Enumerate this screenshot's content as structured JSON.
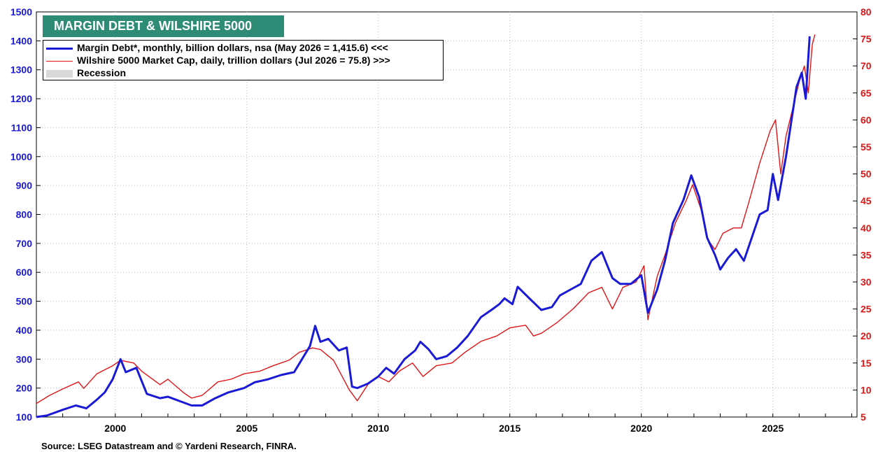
{
  "title": "MARGIN DEBT & WILSHIRE 5000",
  "legend": {
    "margin_debt": "Margin Debt*, monthly, billion dollars, nsa (May 2026 = 1,415.6) <<<",
    "wilshire": "Wilshire 5000 Market Cap, daily, trillion dollars  (Jul 2026 = 75.8) >>>",
    "recession": "Recession"
  },
  "source": "Source: LSEG Datastream and © Yardeni Research, FINRA.",
  "colors": {
    "margin_debt": "#1a1ad6",
    "wilshire": "#e01515",
    "recession": "#d9d9d9",
    "title_bg": "#2e8b76"
  },
  "chart_data": {
    "type": "line",
    "x_range": [
      1997.0,
      2028.2
    ],
    "x_ticks": [
      "2000",
      "2005",
      "2010",
      "2015",
      "2020",
      "2025"
    ],
    "x_tick_values": [
      2000,
      2005,
      2010,
      2015,
      2020,
      2025
    ],
    "y_left": {
      "range": [
        100,
        1500
      ],
      "ticks": [
        "100",
        "200",
        "300",
        "400",
        "500",
        "600",
        "700",
        "800",
        "900",
        "1000",
        "1100",
        "1200",
        "1300",
        "1400",
        "1500"
      ]
    },
    "y_right": {
      "range": [
        5,
        80
      ],
      "ticks": [
        "5",
        "10",
        "15",
        "20",
        "25",
        "30",
        "35",
        "40",
        "45",
        "50",
        "55",
        "60",
        "65",
        "70",
        "75",
        "80"
      ]
    },
    "series": [
      {
        "name": "Margin Debt*, monthly, billion dollars, nsa (May 2026 = 1,415.6) <<<",
        "axis": "left",
        "points": [
          [
            1997.0,
            100
          ],
          [
            1997.4,
            105
          ],
          [
            1998.0,
            125
          ],
          [
            1998.5,
            140
          ],
          [
            1998.9,
            130
          ],
          [
            1999.3,
            160
          ],
          [
            1999.6,
            185
          ],
          [
            1999.9,
            230
          ],
          [
            2000.2,
            300
          ],
          [
            2000.4,
            255
          ],
          [
            2000.8,
            270
          ],
          [
            2001.2,
            180
          ],
          [
            2001.7,
            165
          ],
          [
            2002.0,
            170
          ],
          [
            2002.3,
            160
          ],
          [
            2002.9,
            140
          ],
          [
            2003.3,
            140
          ],
          [
            2003.8,
            165
          ],
          [
            2004.3,
            185
          ],
          [
            2004.9,
            200
          ],
          [
            2005.3,
            220
          ],
          [
            2005.8,
            230
          ],
          [
            2006.3,
            245
          ],
          [
            2006.8,
            255
          ],
          [
            2007.1,
            300
          ],
          [
            2007.4,
            345
          ],
          [
            2007.6,
            415
          ],
          [
            2007.8,
            360
          ],
          [
            2008.1,
            370
          ],
          [
            2008.5,
            330
          ],
          [
            2008.8,
            340
          ],
          [
            2009.0,
            205
          ],
          [
            2009.2,
            200
          ],
          [
            2009.6,
            215
          ],
          [
            2010.0,
            240
          ],
          [
            2010.3,
            270
          ],
          [
            2010.6,
            250
          ],
          [
            2011.0,
            300
          ],
          [
            2011.4,
            330
          ],
          [
            2011.6,
            360
          ],
          [
            2011.9,
            335
          ],
          [
            2012.2,
            300
          ],
          [
            2012.6,
            310
          ],
          [
            2013.0,
            340
          ],
          [
            2013.4,
            380
          ],
          [
            2013.9,
            445
          ],
          [
            2014.3,
            470
          ],
          [
            2014.6,
            490
          ],
          [
            2014.8,
            510
          ],
          [
            2015.1,
            490
          ],
          [
            2015.3,
            550
          ],
          [
            2015.8,
            505
          ],
          [
            2016.2,
            470
          ],
          [
            2016.6,
            480
          ],
          [
            2016.9,
            520
          ],
          [
            2017.3,
            540
          ],
          [
            2017.7,
            560
          ],
          [
            2018.1,
            640
          ],
          [
            2018.5,
            670
          ],
          [
            2018.9,
            580
          ],
          [
            2019.2,
            560
          ],
          [
            2019.6,
            560
          ],
          [
            2020.0,
            590
          ],
          [
            2020.25,
            460
          ],
          [
            2020.6,
            540
          ],
          [
            2020.9,
            640
          ],
          [
            2021.2,
            770
          ],
          [
            2021.6,
            850
          ],
          [
            2021.9,
            935
          ],
          [
            2022.2,
            860
          ],
          [
            2022.5,
            720
          ],
          [
            2022.8,
            660
          ],
          [
            2023.0,
            610
          ],
          [
            2023.3,
            650
          ],
          [
            2023.6,
            680
          ],
          [
            2023.9,
            640
          ],
          [
            2024.2,
            720
          ],
          [
            2024.5,
            800
          ],
          [
            2024.8,
            815
          ],
          [
            2025.0,
            940
          ],
          [
            2025.2,
            850
          ],
          [
            2025.5,
            1000
          ],
          [
            2025.7,
            1120
          ],
          [
            2025.9,
            1240
          ],
          [
            2026.1,
            1290
          ],
          [
            2026.25,
            1200
          ],
          [
            2026.4,
            1415.6
          ]
        ]
      },
      {
        "name": "Wilshire 5000 Market Cap, daily, trillion dollars  (Jul 2026 = 75.8) >>>",
        "axis": "right",
        "points": [
          [
            1997.0,
            7.5
          ],
          [
            1997.5,
            9
          ],
          [
            1998.0,
            10.2
          ],
          [
            1998.6,
            11.5
          ],
          [
            1998.8,
            10.3
          ],
          [
            1999.3,
            13
          ],
          [
            1999.9,
            14.5
          ],
          [
            2000.2,
            15.5
          ],
          [
            2000.7,
            15
          ],
          [
            2001.0,
            13.5
          ],
          [
            2001.7,
            11
          ],
          [
            2002.0,
            12
          ],
          [
            2002.6,
            9.5
          ],
          [
            2002.9,
            8.5
          ],
          [
            2003.3,
            9
          ],
          [
            2003.9,
            11.5
          ],
          [
            2004.4,
            12
          ],
          [
            2004.9,
            13
          ],
          [
            2005.5,
            13.5
          ],
          [
            2006.0,
            14.5
          ],
          [
            2006.6,
            15.5
          ],
          [
            2007.0,
            17
          ],
          [
            2007.5,
            17.8
          ],
          [
            2007.8,
            17.5
          ],
          [
            2008.3,
            15.5
          ],
          [
            2008.9,
            10
          ],
          [
            2009.2,
            8
          ],
          [
            2009.6,
            11
          ],
          [
            2010.0,
            12.5
          ],
          [
            2010.4,
            11.5
          ],
          [
            2010.8,
            13.5
          ],
          [
            2011.3,
            15
          ],
          [
            2011.7,
            12.5
          ],
          [
            2012.2,
            14.5
          ],
          [
            2012.8,
            15
          ],
          [
            2013.3,
            17
          ],
          [
            2013.9,
            19
          ],
          [
            2014.5,
            20
          ],
          [
            2015.0,
            21.5
          ],
          [
            2015.6,
            22
          ],
          [
            2015.9,
            20
          ],
          [
            2016.2,
            20.5
          ],
          [
            2016.8,
            22.5
          ],
          [
            2017.4,
            25
          ],
          [
            2018.0,
            28
          ],
          [
            2018.5,
            29
          ],
          [
            2018.9,
            25
          ],
          [
            2019.3,
            29
          ],
          [
            2019.8,
            30
          ],
          [
            2020.1,
            33
          ],
          [
            2020.25,
            23
          ],
          [
            2020.6,
            31
          ],
          [
            2020.9,
            35
          ],
          [
            2021.3,
            41
          ],
          [
            2021.7,
            45
          ],
          [
            2021.95,
            48
          ],
          [
            2022.3,
            43
          ],
          [
            2022.5,
            38
          ],
          [
            2022.8,
            36
          ],
          [
            2023.1,
            39
          ],
          [
            2023.5,
            40
          ],
          [
            2023.8,
            40
          ],
          [
            2024.1,
            45
          ],
          [
            2024.5,
            52
          ],
          [
            2024.9,
            58
          ],
          [
            2025.1,
            60
          ],
          [
            2025.3,
            50
          ],
          [
            2025.5,
            57
          ],
          [
            2025.8,
            63
          ],
          [
            2026.0,
            67
          ],
          [
            2026.2,
            70
          ],
          [
            2026.35,
            65
          ],
          [
            2026.5,
            74
          ],
          [
            2026.6,
            75.8
          ]
        ]
      }
    ]
  }
}
